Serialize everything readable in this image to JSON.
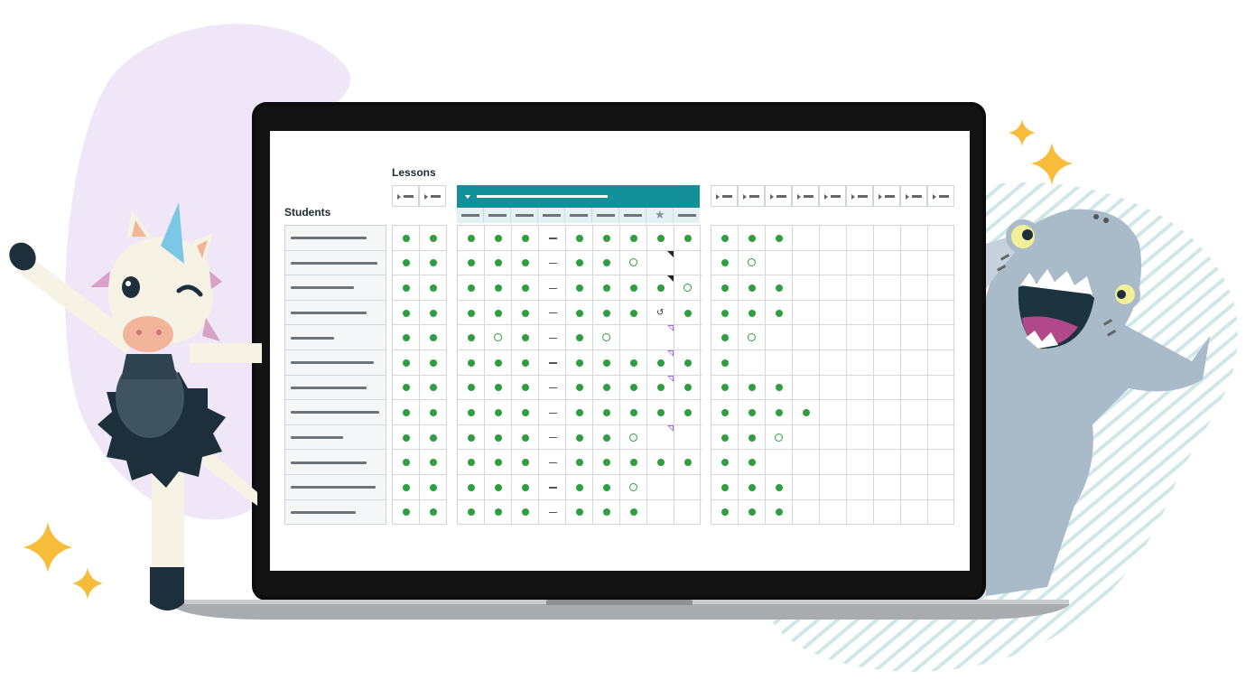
{
  "gradebook": {
    "lessons_label": "Lessons",
    "students_label": "Students",
    "student_count": 12,
    "colors": {
      "complete": "#2e9e3e",
      "unit_header": "#14909a",
      "purple_blob": "#efe7f7",
      "stripes": "#cfe7e9"
    },
    "icons": [
      "star-icon",
      "redo-icon",
      "expand-arrow-icon",
      "collapse-arrow-icon"
    ],
    "legend_codes": {
      "D": "completed",
      "O": "in progress",
      "-": "not applicable",
      "R": "retry",
      "": "not started"
    },
    "group1_rows": [
      "DD",
      "DD",
      "DD",
      "DD",
      "DD",
      "DD",
      "DD",
      "DD",
      "DD",
      "DD",
      "DD",
      "DD"
    ],
    "group2_rows": [
      "DDD-DDDDD",
      "DDD-DDO",
      "DDD-DDDDO",
      "DDD-DDDRD",
      "DOD-DO",
      "DDD-DDDDD",
      "DDD-DDDDD",
      "DDD-DDDDD",
      "DDD-DDO",
      "DDD-DDDDD",
      "DDD-DDO",
      "DDD-DDD"
    ],
    "group3_rows": [
      "DDD",
      "DO",
      "DDD",
      "DDD",
      "DO",
      "D",
      "DDD",
      "DDDD",
      "DDO",
      "DD",
      "DDD",
      "DDD"
    ],
    "feedback_flags": [
      {
        "row": 1,
        "col": 8,
        "kind": "dark"
      },
      {
        "row": 2,
        "col": 8,
        "kind": "dark"
      },
      {
        "row": 4,
        "col": 8,
        "kind": "purple"
      },
      {
        "row": 5,
        "col": 8,
        "kind": "purple"
      },
      {
        "row": 6,
        "col": 8,
        "kind": "purple"
      },
      {
        "row": 8,
        "col": 8,
        "kind": "purple"
      }
    ]
  }
}
